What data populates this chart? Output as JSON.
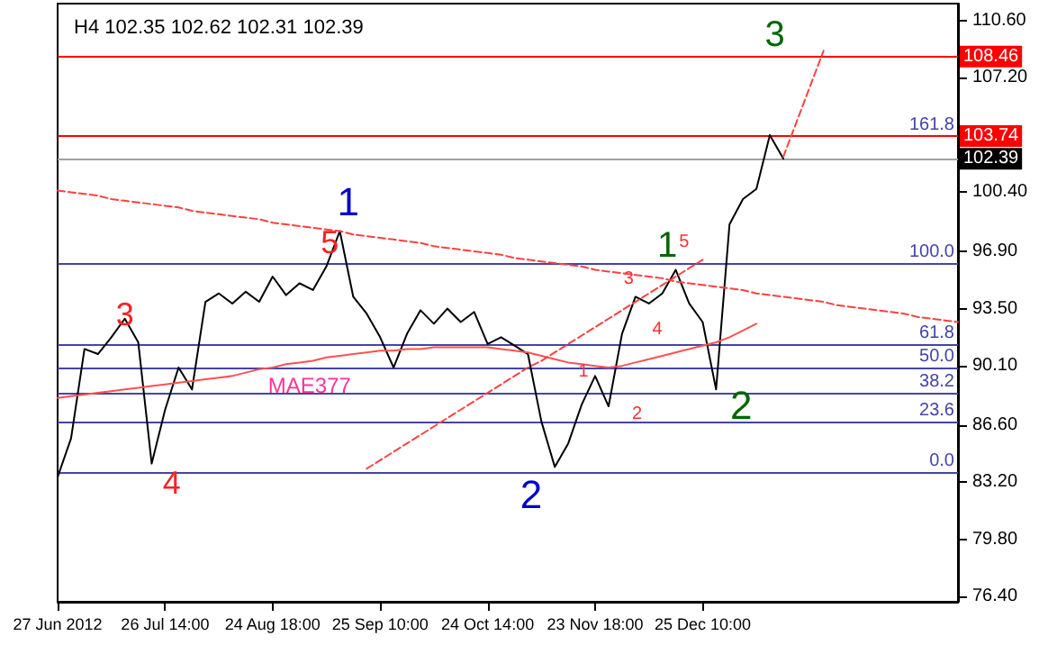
{
  "chart_data": {
    "type": "line",
    "title": "H4 102.35 102.62 102.31 102.39",
    "categories": [
      "27 Jun 2012",
      null,
      null,
      null,
      null,
      null,
      null,
      null,
      "26 Jul 14:00",
      null,
      null,
      null,
      null,
      null,
      null,
      null,
      "24 Aug 18:00",
      null,
      null,
      null,
      null,
      null,
      null,
      null,
      "25 Sep 10:00",
      null,
      null,
      null,
      null,
      null,
      null,
      null,
      "24 Oct 14:00",
      null,
      null,
      null,
      null,
      null,
      null,
      null,
      "23 Nov 18:00",
      null,
      null,
      null,
      null,
      null,
      null,
      null,
      "25 Dec 10:00",
      null,
      null,
      null,
      null,
      null,
      null,
      null,
      null,
      null,
      null,
      null,
      null,
      null,
      null,
      null,
      null,
      null,
      null,
      null
    ],
    "series": [
      {
        "color": "#000000",
        "values": [
          83.5,
          85.8,
          91.1,
          90.8,
          91.8,
          92.9,
          91.5,
          84.3,
          87.5,
          90.0,
          88.7,
          93.9,
          94.4,
          93.8,
          94.5,
          93.9,
          95.4,
          94.3,
          95.0,
          94.6,
          96.0,
          98.1,
          94.2,
          93.2,
          91.8,
          90.0,
          92.0,
          93.4,
          92.6,
          93.5,
          92.7,
          93.3,
          91.4,
          91.8,
          91.3,
          90.8,
          86.8,
          84.1,
          85.5,
          87.8,
          89.5,
          87.7,
          92.0,
          94.2,
          93.8,
          94.4,
          95.8,
          93.8,
          92.7,
          88.7,
          98.5,
          100.0,
          100.6,
          103.8,
          102.4,
          null,
          null,
          null,
          null,
          null,
          null,
          null,
          null,
          null,
          null,
          null,
          null,
          null
        ]
      },
      {
        "color": "#ff5050",
        "values": [
          88.2,
          88.3,
          88.4,
          88.5,
          88.6,
          88.7,
          88.8,
          88.9,
          89.0,
          89.1,
          89.2,
          89.3,
          89.4,
          89.5,
          89.7,
          89.9,
          90.0,
          90.2,
          90.3,
          90.4,
          90.6,
          90.7,
          90.8,
          90.9,
          91.0,
          91.0,
          91.1,
          91.1,
          91.2,
          91.2,
          91.2,
          91.2,
          91.2,
          91.1,
          91.0,
          90.9,
          90.7,
          90.5,
          90.3,
          90.2,
          90.1,
          90.0,
          90.1,
          90.3,
          90.5,
          90.7,
          90.9,
          91.1,
          91.3,
          91.5,
          91.8,
          92.2,
          92.6,
          null,
          null,
          null,
          null,
          null,
          null,
          null,
          null,
          null,
          null,
          null,
          null,
          null,
          null,
          null
        ]
      },
      {
        "color": "#ff4040",
        "line_style": "dashed",
        "values": [
          100.5,
          100.4,
          100.3,
          100.2,
          100.0,
          99.9,
          99.8,
          99.7,
          99.6,
          99.5,
          99.3,
          99.2,
          99.1,
          99.0,
          98.9,
          98.8,
          98.6,
          98.5,
          98.4,
          98.3,
          98.2,
          98.1,
          97.9,
          97.8,
          97.7,
          97.6,
          97.5,
          97.4,
          97.2,
          97.1,
          97.0,
          96.9,
          96.8,
          96.7,
          96.5,
          96.4,
          96.3,
          96.2,
          96.1,
          96.0,
          95.8,
          95.7,
          95.6,
          95.5,
          95.4,
          95.3,
          95.1,
          95.0,
          94.9,
          94.8,
          94.7,
          94.6,
          94.4,
          94.3,
          94.2,
          94.1,
          94.0,
          93.9,
          93.7,
          93.6,
          93.5,
          93.4,
          93.3,
          93.2,
          93.0,
          92.9,
          92.8,
          92.7
        ]
      },
      {
        "color": "#ff4040",
        "line_style": "dashed",
        "values": [
          null,
          null,
          null,
          null,
          null,
          null,
          null,
          null,
          null,
          null,
          null,
          null,
          null,
          null,
          null,
          null,
          null,
          null,
          null,
          null,
          null,
          null,
          null,
          84.0,
          84.5,
          85.0,
          85.5,
          86.0,
          86.5,
          87.0,
          87.5,
          88.0,
          88.5,
          89.0,
          89.5,
          90.0,
          90.4,
          90.9,
          91.4,
          91.9,
          92.4,
          92.9,
          93.4,
          93.9,
          94.4,
          94.9,
          95.4,
          95.9,
          96.4,
          null,
          null,
          null,
          null,
          null,
          null,
          null,
          null,
          null,
          null,
          null,
          null,
          null,
          null,
          null,
          null,
          null,
          null,
          null
        ]
      },
      {
        "color": "#ff4040",
        "line_style": "dashed",
        "values": [
          null,
          null,
          null,
          null,
          null,
          null,
          null,
          null,
          null,
          null,
          null,
          null,
          null,
          null,
          null,
          null,
          null,
          null,
          null,
          null,
          null,
          null,
          null,
          null,
          null,
          null,
          null,
          null,
          null,
          null,
          null,
          null,
          null,
          null,
          null,
          null,
          null,
          null,
          null,
          null,
          null,
          null,
          null,
          null,
          null,
          null,
          null,
          null,
          null,
          null,
          null,
          null,
          null,
          null,
          102.5,
          104.6,
          106.7,
          108.8,
          null,
          null,
          null,
          null,
          null,
          null,
          null,
          null,
          null,
          null
        ]
      }
    ],
    "ylim": [
      76.1,
      111.6
    ],
    "yticks": [
      {
        "value": 110.6,
        "label": "110.60"
      },
      {
        "value": 107.2,
        "label": "107.20"
      },
      {
        "value": 100.4,
        "label": "100.40"
      },
      {
        "value": 96.9,
        "label": "96.90"
      },
      {
        "value": 93.5,
        "label": "93.50"
      },
      {
        "value": 90.1,
        "label": "90.10"
      },
      {
        "value": 86.6,
        "label": "86.60"
      },
      {
        "value": 83.2,
        "label": "83.20"
      },
      {
        "value": 79.8,
        "label": "79.80"
      },
      {
        "value": 76.4,
        "label": "76.40"
      }
    ],
    "ref_lines": [
      {
        "axis": "y",
        "value": 108.46,
        "label": "108.46",
        "color": "#ff0000"
      },
      {
        "axis": "y",
        "value": 103.74,
        "label": "103.74",
        "color": "#ff0000"
      },
      {
        "axis": "y",
        "value": 102.39,
        "label": "102.39",
        "color": "#a0a0a0"
      },
      {
        "axis": "y",
        "value": 96.2,
        "color": "#4444aa"
      },
      {
        "axis": "y",
        "value": 91.4,
        "color": "#4444aa"
      },
      {
        "axis": "y",
        "value": 90.0,
        "color": "#4444aa"
      },
      {
        "axis": "y",
        "value": 88.5,
        "color": "#4444aa"
      },
      {
        "axis": "y",
        "value": 86.8,
        "color": "#4444aa"
      },
      {
        "axis": "y",
        "value": 83.8,
        "color": "#4444aa"
      }
    ],
    "annotations": [
      {
        "text": "161.8",
        "y": 103.74
      },
      {
        "text": "100.0",
        "y": 96.2
      },
      {
        "text": "61.8",
        "y": 91.4
      },
      {
        "text": "50.0",
        "y": 90.0
      },
      {
        "text": "38.2",
        "y": 88.5
      },
      {
        "text": "23.6",
        "y": 86.8
      },
      {
        "text": "0.0",
        "y": 83.8
      },
      "1",
      "5",
      "3",
      "4",
      "2",
      "1",
      "5",
      "3",
      "4",
      "1",
      "2",
      "2",
      "3",
      "MAE377"
    ],
    "grid": false,
    "marker": "none"
  }
}
